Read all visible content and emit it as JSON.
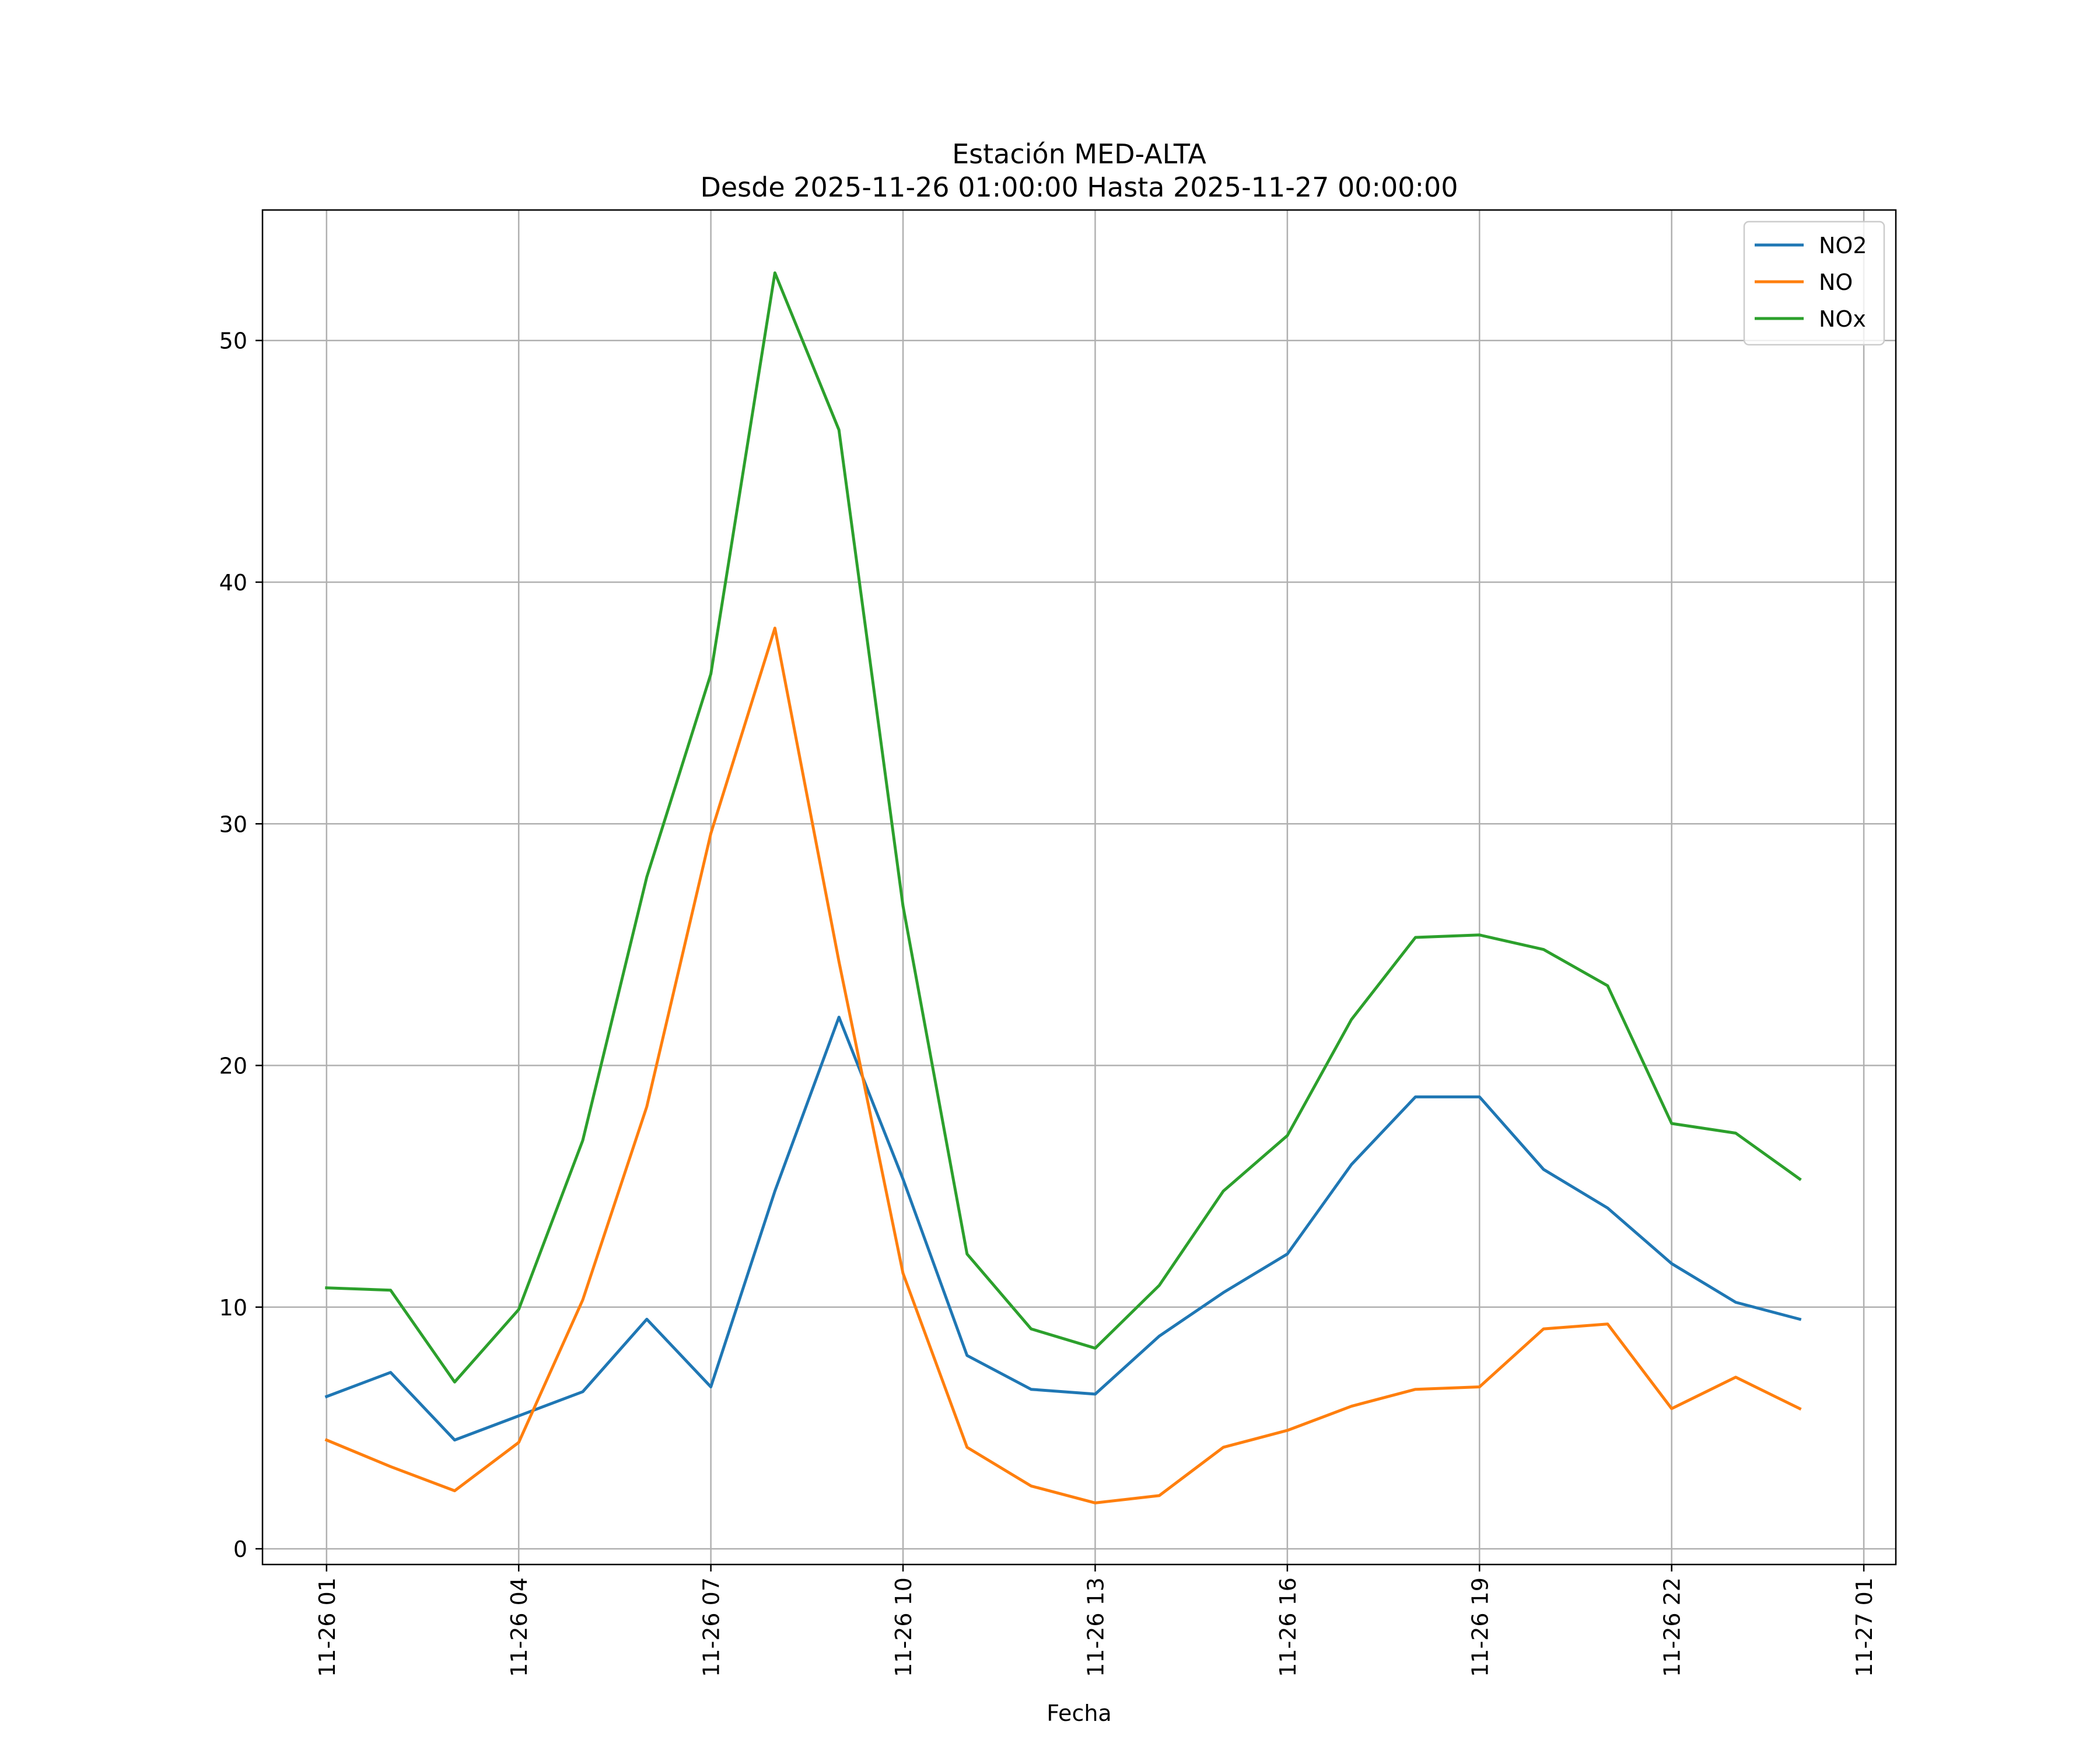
{
  "chart_data": {
    "type": "line",
    "title": "Estación MED-ALTA",
    "subtitle": "Desde 2025-11-26 01:00:00 Hasta 2025-11-27 00:00:00",
    "xlabel": "Fecha",
    "ylabel": "",
    "x": [
      "2025-11-26 01:00",
      "2025-11-26 02:00",
      "2025-11-26 03:00",
      "2025-11-26 04:00",
      "2025-11-26 05:00",
      "2025-11-26 06:00",
      "2025-11-26 07:00",
      "2025-11-26 08:00",
      "2025-11-26 09:00",
      "2025-11-26 10:00",
      "2025-11-26 11:00",
      "2025-11-26 12:00",
      "2025-11-26 13:00",
      "2025-11-26 14:00",
      "2025-11-26 15:00",
      "2025-11-26 16:00",
      "2025-11-26 17:00",
      "2025-11-26 18:00",
      "2025-11-26 19:00",
      "2025-11-26 20:00",
      "2025-11-26 21:00",
      "2025-11-26 22:00",
      "2025-11-26 23:00",
      "2025-11-27 00:00"
    ],
    "xlim": [
      "2025-11-26 00:00",
      "2025-11-27 01:30"
    ],
    "xticks": [
      {
        "x": "2025-11-26 01:00",
        "label": "11-26 01"
      },
      {
        "x": "2025-11-26 04:00",
        "label": "11-26 04"
      },
      {
        "x": "2025-11-26 07:00",
        "label": "11-26 07"
      },
      {
        "x": "2025-11-26 10:00",
        "label": "11-26 10"
      },
      {
        "x": "2025-11-26 13:00",
        "label": "11-26 13"
      },
      {
        "x": "2025-11-26 16:00",
        "label": "11-26 16"
      },
      {
        "x": "2025-11-26 19:00",
        "label": "11-26 19"
      },
      {
        "x": "2025-11-26 22:00",
        "label": "11-26 22"
      },
      {
        "x": "2025-11-27 01:00",
        "label": "11-27 01"
      }
    ],
    "ylim": [
      -0.65,
      55.4
    ],
    "yticks": [
      0,
      10,
      20,
      30,
      40,
      50
    ],
    "grid": true,
    "legend_position": "top-right",
    "series": [
      {
        "name": "NO2",
        "color": "#1f77b4",
        "values": [
          6.3,
          7.3,
          4.5,
          5.5,
          6.5,
          9.5,
          6.7,
          14.8,
          22.0,
          15.3,
          8.0,
          6.6,
          6.4,
          8.8,
          10.6,
          12.2,
          15.9,
          18.7,
          18.7,
          15.7,
          14.1,
          11.8,
          10.2,
          9.5
        ]
      },
      {
        "name": "NO",
        "color": "#ff7f0e",
        "values": [
          4.5,
          3.4,
          2.4,
          4.4,
          10.3,
          18.3,
          29.6,
          38.1,
          24.3,
          11.4,
          4.2,
          2.6,
          1.9,
          2.2,
          4.2,
          4.9,
          5.9,
          6.6,
          6.7,
          9.1,
          9.3,
          5.8,
          7.1,
          5.8
        ]
      },
      {
        "name": "NOx",
        "color": "#2ca02c",
        "values": [
          10.8,
          10.7,
          6.9,
          9.9,
          16.9,
          27.8,
          36.2,
          52.8,
          46.3,
          26.6,
          12.2,
          9.1,
          8.3,
          10.9,
          14.8,
          17.1,
          21.9,
          25.3,
          25.4,
          24.8,
          23.3,
          17.6,
          17.2,
          15.3
        ]
      }
    ]
  }
}
